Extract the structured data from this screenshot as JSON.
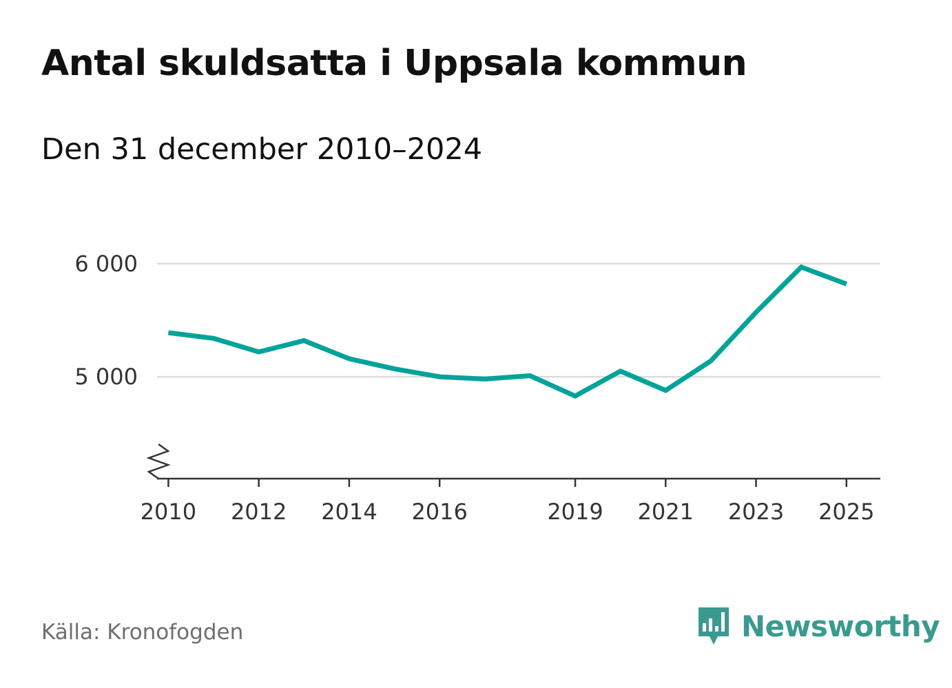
{
  "title": "Antal skuldsatta i Uppsala kommun",
  "subtitle": "Den 31 december 2010–2024",
  "source": "Källa: Kronofogden",
  "brand": {
    "name": "Newsworthy",
    "color": "#3a9a90",
    "icon": "newsworthy-logo-icon"
  },
  "chart_data": {
    "type": "line",
    "title": "Antal skuldsatta i Uppsala kommun",
    "subtitle": "Den 31 december 2010–2024",
    "xlabel": "",
    "ylabel": "",
    "x": [
      2010,
      2011,
      2012,
      2013,
      2014,
      2015,
      2016,
      2017,
      2018,
      2019,
      2020,
      2021,
      2022,
      2023,
      2024,
      2025
    ],
    "series": [
      {
        "name": "Antal skuldsatta",
        "color": "#00a39a",
        "values": [
          5390,
          5340,
          5220,
          5320,
          5160,
          5070,
          5000,
          4980,
          5010,
          4830,
          5050,
          4880,
          5140,
          5570,
          5970,
          5820
        ]
      }
    ],
    "xlim": [
      2009.75,
      2025.75
    ],
    "ylim": [
      4100,
      6200
    ],
    "axis_break": true,
    "x_ticks": [
      2010,
      2012,
      2014,
      2016,
      2019,
      2021,
      2023,
      2025
    ],
    "x_tick_labels": [
      "2010",
      "2012",
      "2014",
      "2016",
      "2019",
      "2021",
      "2023",
      "2025"
    ],
    "y_ticks": [
      5000,
      6000
    ],
    "y_tick_labels": [
      "5 000",
      "6 000"
    ],
    "grid": true
  }
}
